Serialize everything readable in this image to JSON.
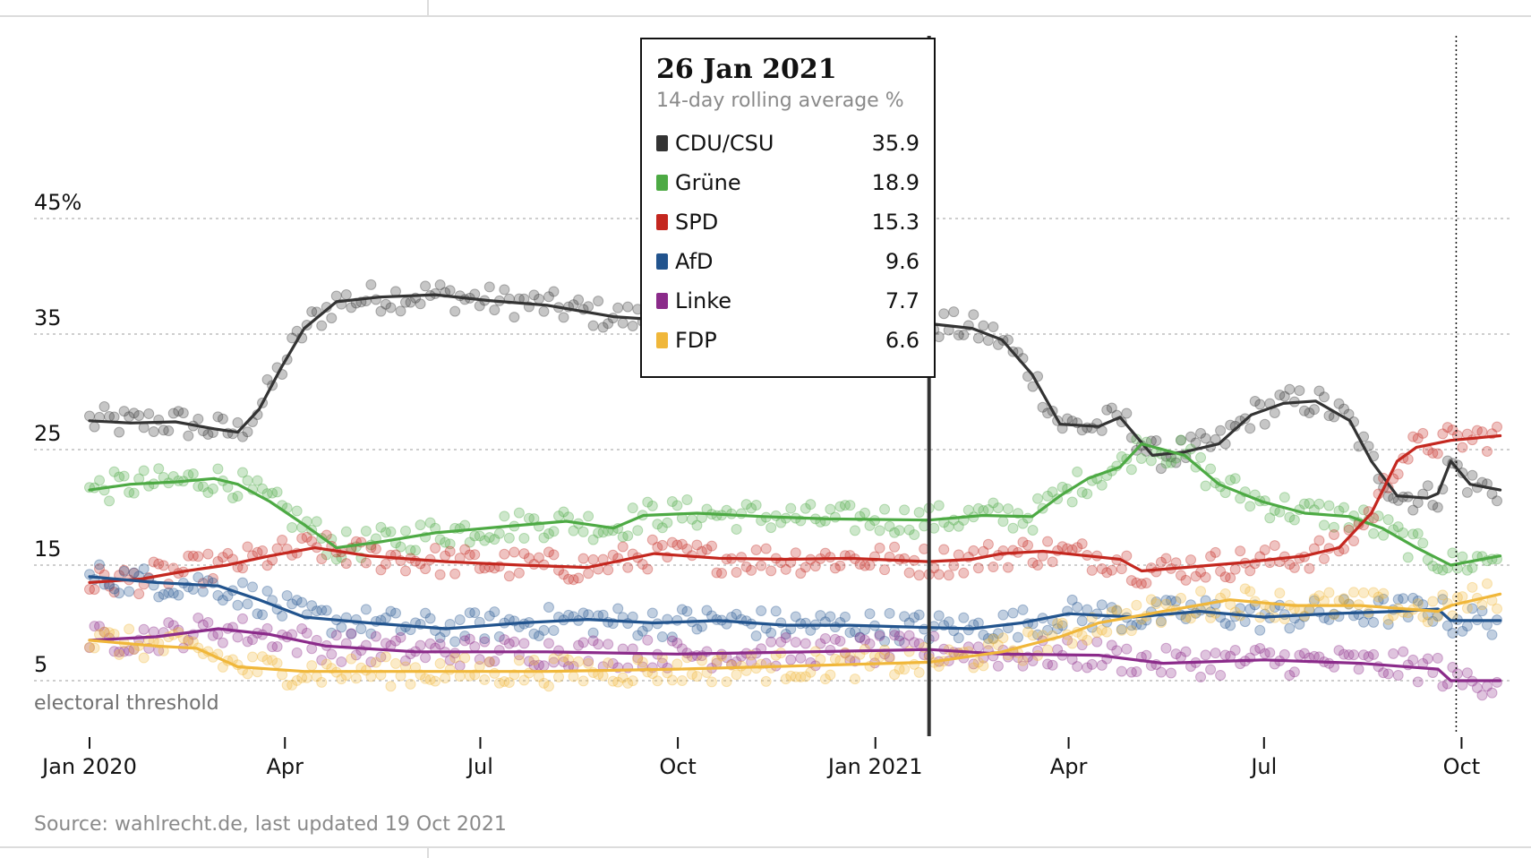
{
  "chart_data": {
    "type": "line",
    "title": "",
    "xlabel": "",
    "ylabel": "",
    "y_ticks": [
      {
        "value": 45,
        "label": "45%"
      },
      {
        "value": 35,
        "label": "35"
      },
      {
        "value": 25,
        "label": "25"
      },
      {
        "value": 15,
        "label": "15"
      },
      {
        "value": 5,
        "label": "5"
      }
    ],
    "x_ticks": [
      {
        "date": "2020-01-01",
        "label": "Jan 2020"
      },
      {
        "date": "2020-04-01",
        "label": "Apr"
      },
      {
        "date": "2020-07-01",
        "label": "Jul"
      },
      {
        "date": "2020-10-01",
        "label": "Oct"
      },
      {
        "date": "2021-01-01",
        "label": "Jan 2021"
      },
      {
        "date": "2021-04-01",
        "label": "Apr"
      },
      {
        "date": "2021-07-01",
        "label": "Jul"
      },
      {
        "date": "2021-10-01",
        "label": "Oct"
      }
    ],
    "ylim": [
      0,
      50
    ],
    "xlim": [
      "2020-01-01",
      "2021-10-20"
    ],
    "grid": "horizontal dashed",
    "annotations": {
      "threshold_value": 5,
      "threshold_label": "electoral threshold",
      "election_date": "2021-09-26",
      "hover_date": "2021-01-26"
    },
    "series": [
      {
        "name": "CDU/CSU",
        "color": "#333333",
        "points": [
          [
            "2020-01-01",
            27.5
          ],
          [
            "2020-01-20",
            27.3
          ],
          [
            "2020-02-10",
            27.4
          ],
          [
            "2020-02-28",
            26.8
          ],
          [
            "2020-03-10",
            26.5
          ],
          [
            "2020-03-20",
            28.5
          ],
          [
            "2020-03-30",
            32.0
          ],
          [
            "2020-04-10",
            35.5
          ],
          [
            "2020-04-25",
            37.8
          ],
          [
            "2020-05-15",
            38.2
          ],
          [
            "2020-06-10",
            38.4
          ],
          [
            "2020-07-05",
            37.9
          ],
          [
            "2020-08-01",
            37.5
          ],
          [
            "2020-09-01",
            36.5
          ],
          [
            "2020-09-25",
            36.2
          ],
          [
            "2020-10-20",
            36.0
          ],
          [
            "2020-11-20",
            36.1
          ],
          [
            "2020-12-20",
            36.0
          ],
          [
            "2021-01-26",
            35.9
          ],
          [
            "2021-02-15",
            35.5
          ],
          [
            "2021-03-01",
            34.5
          ],
          [
            "2021-03-15",
            31.5
          ],
          [
            "2021-03-28",
            27.2
          ],
          [
            "2021-04-15",
            27.0
          ],
          [
            "2021-04-25",
            27.8
          ],
          [
            "2021-05-10",
            24.5
          ],
          [
            "2021-05-25",
            24.8
          ],
          [
            "2021-06-10",
            25.5
          ],
          [
            "2021-06-25",
            28.0
          ],
          [
            "2021-07-10",
            29.0
          ],
          [
            "2021-07-25",
            29.2
          ],
          [
            "2021-08-10",
            27.5
          ],
          [
            "2021-08-20",
            24.0
          ],
          [
            "2021-09-01",
            21.0
          ],
          [
            "2021-09-15",
            20.8
          ],
          [
            "2021-09-20",
            21.2
          ],
          [
            "2021-09-26",
            24.0
          ],
          [
            "2021-10-05",
            22.0
          ],
          [
            "2021-10-19",
            21.5
          ]
        ]
      },
      {
        "name": "Grüne",
        "color": "#4daa44",
        "points": [
          [
            "2020-01-01",
            21.5
          ],
          [
            "2020-01-20",
            22.0
          ],
          [
            "2020-02-10",
            22.2
          ],
          [
            "2020-02-28",
            22.5
          ],
          [
            "2020-03-10",
            22.0
          ],
          [
            "2020-03-25",
            20.5
          ],
          [
            "2020-04-10",
            18.5
          ],
          [
            "2020-04-25",
            16.5
          ],
          [
            "2020-05-15",
            17.0
          ],
          [
            "2020-06-10",
            17.8
          ],
          [
            "2020-07-10",
            18.3
          ],
          [
            "2020-08-10",
            18.8
          ],
          [
            "2020-09-01",
            18.2
          ],
          [
            "2020-09-15",
            19.3
          ],
          [
            "2020-10-10",
            19.5
          ],
          [
            "2020-11-10",
            19.2
          ],
          [
            "2020-12-10",
            19.0
          ],
          [
            "2021-01-26",
            18.9
          ],
          [
            "2021-02-20",
            19.3
          ],
          [
            "2021-03-15",
            19.2
          ],
          [
            "2021-03-28",
            21.0
          ],
          [
            "2021-04-10",
            22.5
          ],
          [
            "2021-04-25",
            23.5
          ],
          [
            "2021-05-05",
            25.5
          ],
          [
            "2021-05-25",
            24.5
          ],
          [
            "2021-06-10",
            22.0
          ],
          [
            "2021-06-30",
            20.5
          ],
          [
            "2021-07-20",
            19.5
          ],
          [
            "2021-08-10",
            19.2
          ],
          [
            "2021-08-25",
            18.2
          ],
          [
            "2021-09-10",
            16.5
          ],
          [
            "2021-09-26",
            15.0
          ],
          [
            "2021-10-19",
            15.8
          ]
        ]
      },
      {
        "name": "SPD",
        "color": "#c4271f",
        "points": [
          [
            "2020-01-01",
            13.5
          ],
          [
            "2020-01-25",
            13.8
          ],
          [
            "2020-02-15",
            14.5
          ],
          [
            "2020-03-05",
            15.0
          ],
          [
            "2020-03-25",
            15.8
          ],
          [
            "2020-04-15",
            16.5
          ],
          [
            "2020-05-10",
            15.8
          ],
          [
            "2020-06-15",
            15.3
          ],
          [
            "2020-07-20",
            15.0
          ],
          [
            "2020-08-20",
            14.8
          ],
          [
            "2020-09-20",
            16.0
          ],
          [
            "2020-10-20",
            15.6
          ],
          [
            "2020-11-20",
            15.5
          ],
          [
            "2020-12-20",
            15.6
          ],
          [
            "2021-01-26",
            15.3
          ],
          [
            "2021-02-15",
            15.5
          ],
          [
            "2021-03-01",
            16.0
          ],
          [
            "2021-03-20",
            16.2
          ],
          [
            "2021-04-10",
            15.8
          ],
          [
            "2021-04-25",
            15.5
          ],
          [
            "2021-05-05",
            14.5
          ],
          [
            "2021-05-25",
            14.8
          ],
          [
            "2021-06-20",
            15.2
          ],
          [
            "2021-07-20",
            15.8
          ],
          [
            "2021-08-05",
            16.5
          ],
          [
            "2021-08-20",
            19.5
          ],
          [
            "2021-09-01",
            24.0
          ],
          [
            "2021-09-10",
            25.2
          ],
          [
            "2021-09-26",
            25.8
          ],
          [
            "2021-10-19",
            26.2
          ]
        ]
      },
      {
        "name": "AfD",
        "color": "#22548e",
        "points": [
          [
            "2020-01-01",
            14.0
          ],
          [
            "2020-02-01",
            13.5
          ],
          [
            "2020-03-01",
            13.2
          ],
          [
            "2020-03-20",
            12.0
          ],
          [
            "2020-04-10",
            10.5
          ],
          [
            "2020-05-10",
            10.0
          ],
          [
            "2020-06-15",
            9.5
          ],
          [
            "2020-07-20",
            10.0
          ],
          [
            "2020-08-20",
            10.3
          ],
          [
            "2020-09-20",
            10.0
          ],
          [
            "2020-10-20",
            10.2
          ],
          [
            "2020-11-20",
            9.8
          ],
          [
            "2020-12-20",
            9.8
          ],
          [
            "2021-01-26",
            9.6
          ],
          [
            "2021-02-15",
            9.5
          ],
          [
            "2021-03-10",
            10.0
          ],
          [
            "2021-04-01",
            10.8
          ],
          [
            "2021-05-01",
            10.5
          ],
          [
            "2021-06-01",
            11.0
          ],
          [
            "2021-07-01",
            10.5
          ],
          [
            "2021-08-01",
            10.8
          ],
          [
            "2021-09-01",
            11.0
          ],
          [
            "2021-09-20",
            11.2
          ],
          [
            "2021-09-26",
            10.2
          ],
          [
            "2021-10-19",
            10.2
          ]
        ]
      },
      {
        "name": "Linke",
        "color": "#8b2b8a",
        "points": [
          [
            "2020-01-01",
            8.5
          ],
          [
            "2020-02-01",
            8.8
          ],
          [
            "2020-03-01",
            9.5
          ],
          [
            "2020-03-25",
            9.0
          ],
          [
            "2020-04-20",
            8.0
          ],
          [
            "2020-06-01",
            7.5
          ],
          [
            "2020-08-01",
            7.5
          ],
          [
            "2020-10-01",
            7.3
          ],
          [
            "2020-12-01",
            7.5
          ],
          [
            "2021-01-26",
            7.7
          ],
          [
            "2021-03-01",
            7.3
          ],
          [
            "2021-04-15",
            7.2
          ],
          [
            "2021-05-15",
            6.5
          ],
          [
            "2021-07-01",
            6.8
          ],
          [
            "2021-08-15",
            6.5
          ],
          [
            "2021-09-20",
            6.0
          ],
          [
            "2021-09-26",
            5.0
          ],
          [
            "2021-10-19",
            5.0
          ]
        ]
      },
      {
        "name": "FDP",
        "color": "#f0b73a",
        "points": [
          [
            "2020-01-01",
            8.5
          ],
          [
            "2020-02-01",
            8.0
          ],
          [
            "2020-02-20",
            7.8
          ],
          [
            "2020-03-10",
            6.2
          ],
          [
            "2020-04-10",
            5.8
          ],
          [
            "2020-06-01",
            5.8
          ],
          [
            "2020-08-01",
            5.8
          ],
          [
            "2020-10-01",
            6.0
          ],
          [
            "2020-12-01",
            6.3
          ],
          [
            "2021-01-26",
            6.6
          ],
          [
            "2021-03-01",
            7.5
          ],
          [
            "2021-03-28",
            8.8
          ],
          [
            "2021-04-15",
            10.0
          ],
          [
            "2021-05-15",
            11.0
          ],
          [
            "2021-06-15",
            12.0
          ],
          [
            "2021-07-15",
            11.5
          ],
          [
            "2021-08-15",
            11.5
          ],
          [
            "2021-09-20",
            11.0
          ],
          [
            "2021-09-26",
            11.5
          ],
          [
            "2021-10-19",
            12.5
          ]
        ]
      }
    ]
  },
  "tooltip": {
    "date": "26 Jan 2021",
    "subtitle": "14-day rolling average %",
    "rows": [
      {
        "name": "CDU/CSU",
        "value": "35.9",
        "color": "#333333"
      },
      {
        "name": "Grüne",
        "value": "18.9",
        "color": "#4daa44"
      },
      {
        "name": "SPD",
        "value": "15.3",
        "color": "#c4271f"
      },
      {
        "name": "AfD",
        "value": "9.6",
        "color": "#22548e"
      },
      {
        "name": "Linke",
        "value": "7.7",
        "color": "#8b2b8a"
      },
      {
        "name": "FDP",
        "value": "6.6",
        "color": "#f0b73a"
      }
    ]
  },
  "source": "Source: wahlrecht.de, last updated 19 Oct 2021"
}
